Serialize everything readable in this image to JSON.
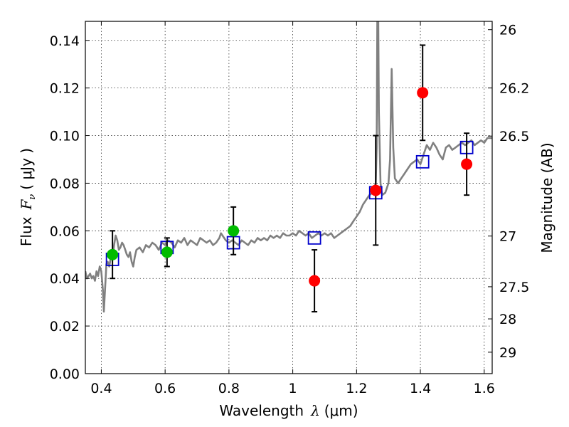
{
  "chart_data": {
    "type": "scatter",
    "xlabel_main": "Wavelength",
    "xlabel_symbol": "λ",
    "xlabel_unit": "(μm)",
    "ylabel_main": "Flux",
    "ylabel_symbol": "F",
    "ylabel_sub": "ν",
    "ylabel_unit": "( μJy )",
    "y2label": "Magnitude (AB)",
    "xlim": [
      0.35,
      1.625
    ],
    "ylim": [
      0.0,
      0.148
    ],
    "grid": true,
    "x_ticks": [
      {
        "value": 0.4,
        "label": "0.4"
      },
      {
        "value": 0.6,
        "label": "0.6"
      },
      {
        "value": 0.8,
        "label": "0.8"
      },
      {
        "value": 1.0,
        "label": "1"
      },
      {
        "value": 1.2,
        "label": "1.2"
      },
      {
        "value": 1.4,
        "label": "1.4"
      },
      {
        "value": 1.6,
        "label": "1.6"
      }
    ],
    "y_ticks": [
      {
        "value": 0.0,
        "label": "0.00"
      },
      {
        "value": 0.02,
        "label": "0.02"
      },
      {
        "value": 0.04,
        "label": "0.04"
      },
      {
        "value": 0.06,
        "label": "0.06"
      },
      {
        "value": 0.08,
        "label": "0.08"
      },
      {
        "value": 0.1,
        "label": "0.10"
      },
      {
        "value": 0.12,
        "label": "0.12"
      },
      {
        "value": 0.14,
        "label": "0.14"
      }
    ],
    "y2_ticks": [
      {
        "flux": 0.1445,
        "label": "26"
      },
      {
        "flux": 0.12,
        "label": "26.2"
      },
      {
        "flux": 0.0998,
        "label": "26.5"
      },
      {
        "flux": 0.0578,
        "label": "27"
      },
      {
        "flux": 0.0365,
        "label": "27.5"
      },
      {
        "flux": 0.023,
        "label": "28"
      },
      {
        "flux": 0.009,
        "label": "29"
      }
    ],
    "colors": {
      "spectrum": "#808080",
      "model_box": "#0000cc",
      "green_points": "#00bb00",
      "red_points": "#ff0000",
      "errorbar": "#000000"
    },
    "spectrum": [
      [
        0.35,
        0.043
      ],
      [
        0.355,
        0.04
      ],
      [
        0.36,
        0.041
      ],
      [
        0.365,
        0.042
      ],
      [
        0.37,
        0.04
      ],
      [
        0.375,
        0.041
      ],
      [
        0.38,
        0.039
      ],
      [
        0.385,
        0.043
      ],
      [
        0.39,
        0.041
      ],
      [
        0.395,
        0.045
      ],
      [
        0.4,
        0.043
      ],
      [
        0.405,
        0.035
      ],
      [
        0.408,
        0.026
      ],
      [
        0.412,
        0.036
      ],
      [
        0.416,
        0.046
      ],
      [
        0.42,
        0.047
      ],
      [
        0.425,
        0.045
      ],
      [
        0.43,
        0.049
      ],
      [
        0.435,
        0.048
      ],
      [
        0.44,
        0.054
      ],
      [
        0.445,
        0.058
      ],
      [
        0.45,
        0.056
      ],
      [
        0.455,
        0.052
      ],
      [
        0.46,
        0.053
      ],
      [
        0.465,
        0.055
      ],
      [
        0.47,
        0.054
      ],
      [
        0.475,
        0.052
      ],
      [
        0.48,
        0.05
      ],
      [
        0.485,
        0.049
      ],
      [
        0.49,
        0.051
      ],
      [
        0.495,
        0.047
      ],
      [
        0.5,
        0.045
      ],
      [
        0.505,
        0.049
      ],
      [
        0.51,
        0.052
      ],
      [
        0.52,
        0.053
      ],
      [
        0.53,
        0.051
      ],
      [
        0.54,
        0.054
      ],
      [
        0.55,
        0.053
      ],
      [
        0.56,
        0.055
      ],
      [
        0.57,
        0.054
      ],
      [
        0.58,
        0.052
      ],
      [
        0.59,
        0.055
      ],
      [
        0.6,
        0.054
      ],
      [
        0.61,
        0.056
      ],
      [
        0.62,
        0.055
      ],
      [
        0.63,
        0.053
      ],
      [
        0.64,
        0.056
      ],
      [
        0.65,
        0.055
      ],
      [
        0.66,
        0.057
      ],
      [
        0.67,
        0.054
      ],
      [
        0.68,
        0.056
      ],
      [
        0.69,
        0.055
      ],
      [
        0.7,
        0.054
      ],
      [
        0.71,
        0.057
      ],
      [
        0.72,
        0.056
      ],
      [
        0.73,
        0.055
      ],
      [
        0.74,
        0.056
      ],
      [
        0.75,
        0.054
      ],
      [
        0.76,
        0.055
      ],
      [
        0.77,
        0.057
      ],
      [
        0.775,
        0.059
      ],
      [
        0.78,
        0.058
      ],
      [
        0.79,
        0.056
      ],
      [
        0.8,
        0.055
      ],
      [
        0.81,
        0.056
      ],
      [
        0.82,
        0.055
      ],
      [
        0.83,
        0.054
      ],
      [
        0.84,
        0.056
      ],
      [
        0.85,
        0.055
      ],
      [
        0.86,
        0.054
      ],
      [
        0.87,
        0.056
      ],
      [
        0.88,
        0.055
      ],
      [
        0.89,
        0.057
      ],
      [
        0.9,
        0.056
      ],
      [
        0.91,
        0.057
      ],
      [
        0.92,
        0.056
      ],
      [
        0.93,
        0.058
      ],
      [
        0.94,
        0.057
      ],
      [
        0.95,
        0.058
      ],
      [
        0.96,
        0.057
      ],
      [
        0.97,
        0.059
      ],
      [
        0.98,
        0.058
      ],
      [
        0.99,
        0.058
      ],
      [
        1.0,
        0.059
      ],
      [
        1.01,
        0.058
      ],
      [
        1.02,
        0.06
      ],
      [
        1.03,
        0.059
      ],
      [
        1.04,
        0.058
      ],
      [
        1.05,
        0.059
      ],
      [
        1.06,
        0.057
      ],
      [
        1.07,
        0.058
      ],
      [
        1.08,
        0.059
      ],
      [
        1.09,
        0.058
      ],
      [
        1.1,
        0.059
      ],
      [
        1.11,
        0.058
      ],
      [
        1.12,
        0.059
      ],
      [
        1.13,
        0.057
      ],
      [
        1.14,
        0.058
      ],
      [
        1.15,
        0.059
      ],
      [
        1.16,
        0.06
      ],
      [
        1.17,
        0.061
      ],
      [
        1.18,
        0.062
      ],
      [
        1.19,
        0.064
      ],
      [
        1.2,
        0.066
      ],
      [
        1.21,
        0.068
      ],
      [
        1.22,
        0.071
      ],
      [
        1.23,
        0.073
      ],
      [
        1.24,
        0.075
      ],
      [
        1.25,
        0.076
      ],
      [
        1.255,
        0.078
      ],
      [
        1.26,
        0.08
      ],
      [
        1.263,
        0.095
      ],
      [
        1.265,
        0.15
      ],
      [
        1.268,
        0.15
      ],
      [
        1.27,
        0.11
      ],
      [
        1.275,
        0.08
      ],
      [
        1.28,
        0.075
      ],
      [
        1.29,
        0.076
      ],
      [
        1.295,
        0.078
      ],
      [
        1.3,
        0.08
      ],
      [
        1.305,
        0.09
      ],
      [
        1.31,
        0.128
      ],
      [
        1.315,
        0.095
      ],
      [
        1.32,
        0.082
      ],
      [
        1.33,
        0.08
      ],
      [
        1.34,
        0.082
      ],
      [
        1.35,
        0.084
      ],
      [
        1.36,
        0.086
      ],
      [
        1.37,
        0.088
      ],
      [
        1.38,
        0.089
      ],
      [
        1.39,
        0.09
      ],
      [
        1.4,
        0.088
      ],
      [
        1.41,
        0.092
      ],
      [
        1.42,
        0.096
      ],
      [
        1.43,
        0.094
      ],
      [
        1.44,
        0.097
      ],
      [
        1.45,
        0.095
      ],
      [
        1.46,
        0.092
      ],
      [
        1.47,
        0.09
      ],
      [
        1.48,
        0.095
      ],
      [
        1.49,
        0.096
      ],
      [
        1.5,
        0.094
      ],
      [
        1.51,
        0.095
      ],
      [
        1.52,
        0.096
      ],
      [
        1.53,
        0.097
      ],
      [
        1.54,
        0.096
      ],
      [
        1.55,
        0.097
      ],
      [
        1.56,
        0.098
      ],
      [
        1.57,
        0.096
      ],
      [
        1.58,
        0.097
      ],
      [
        1.59,
        0.098
      ],
      [
        1.6,
        0.097
      ],
      [
        1.61,
        0.099
      ],
      [
        1.625,
        0.099
      ]
    ],
    "model_points": [
      {
        "x": 0.435,
        "y": 0.048
      },
      {
        "x": 0.606,
        "y": 0.053
      },
      {
        "x": 0.814,
        "y": 0.055
      },
      {
        "x": 1.068,
        "y": 0.057
      },
      {
        "x": 1.26,
        "y": 0.076
      },
      {
        "x": 1.407,
        "y": 0.089
      },
      {
        "x": 1.545,
        "y": 0.095
      }
    ],
    "green_points": [
      {
        "x": 0.435,
        "y": 0.05,
        "yerr": 0.01
      },
      {
        "x": 0.606,
        "y": 0.051,
        "yerr": 0.006
      },
      {
        "x": 0.814,
        "y": 0.06,
        "yerr": 0.01
      }
    ],
    "red_points": [
      {
        "x": 1.068,
        "y": 0.039,
        "yerr": 0.013
      },
      {
        "x": 1.26,
        "y": 0.077,
        "yerr": 0.023
      },
      {
        "x": 1.407,
        "y": 0.118,
        "yerr": 0.02
      },
      {
        "x": 1.545,
        "y": 0.088,
        "yerr": 0.013
      }
    ]
  }
}
